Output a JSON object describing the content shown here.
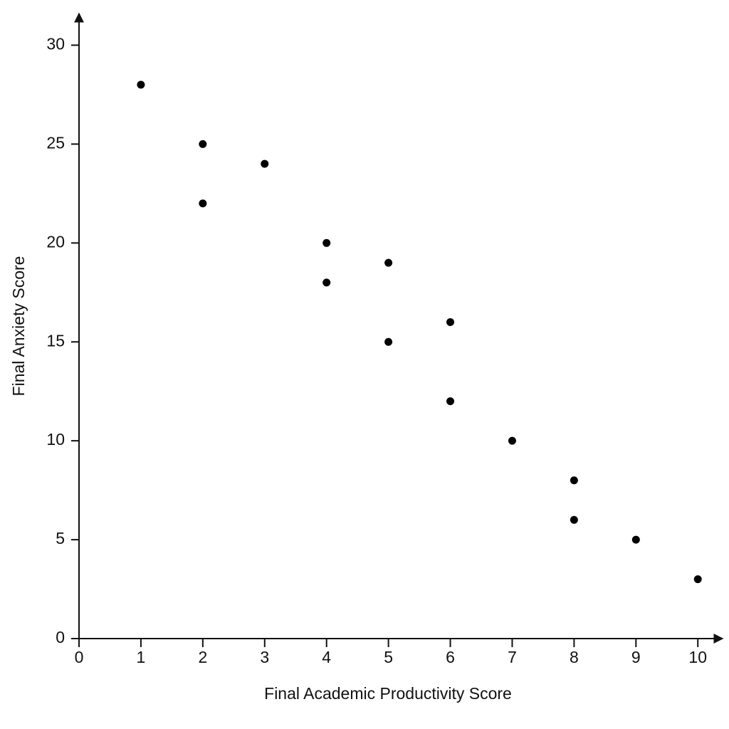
{
  "chart_data": {
    "type": "scatter",
    "x_label": "Final Academic Productivity Score",
    "y_label": "Final Anxiety Score",
    "x": [
      1,
      2,
      2,
      3,
      4,
      4,
      5,
      5,
      6,
      6,
      7,
      8,
      8,
      9,
      10
    ],
    "values": [
      28,
      25,
      22,
      24,
      20,
      18,
      19,
      15,
      16,
      12,
      10,
      8,
      6,
      5,
      3
    ],
    "color": "#000000",
    "xlim": [
      0,
      10.4
    ],
    "xticks": [
      0,
      1,
      2,
      3,
      4,
      5,
      6,
      7,
      8,
      9,
      10
    ],
    "ylim": [
      0,
      31.6
    ],
    "yticks": [
      0,
      5,
      10,
      15,
      20,
      25,
      30
    ],
    "grid": false
  }
}
